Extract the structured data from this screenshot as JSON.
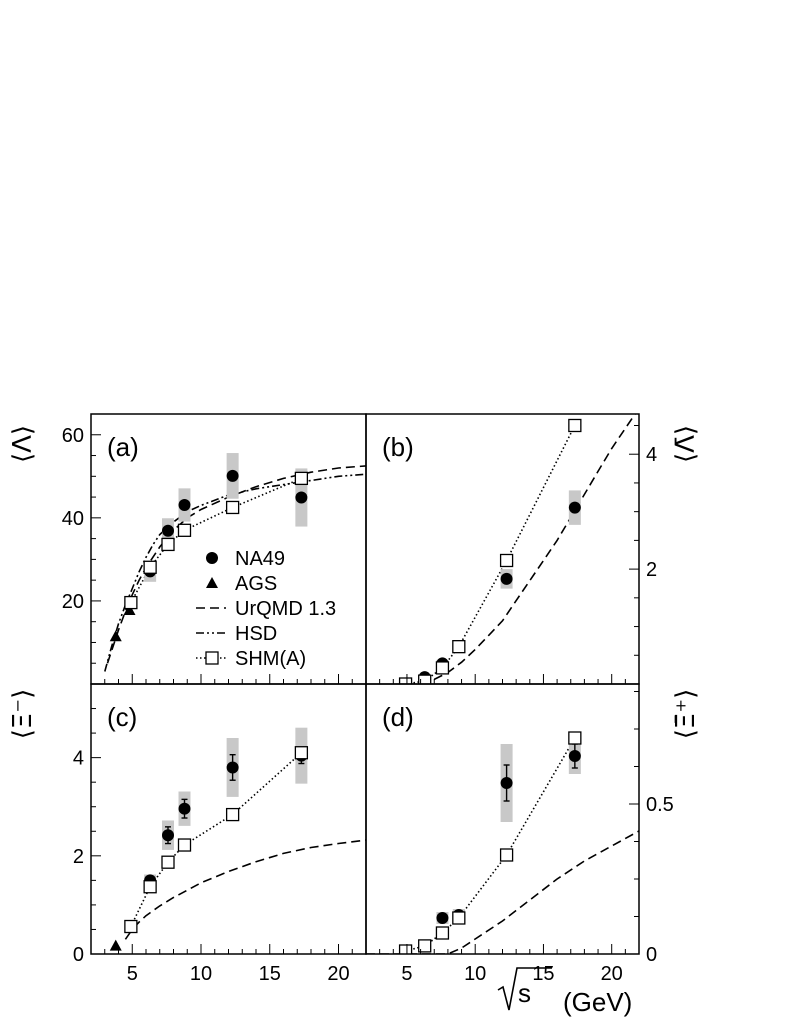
{
  "chart_data": [
    {
      "panel": "(a)",
      "type": "scatter",
      "ylabel": "⟨Λ⟩",
      "xlim": [
        2,
        22
      ],
      "ylim": [
        0,
        65
      ],
      "yticks": [
        20,
        40,
        60
      ],
      "series": [
        {
          "name": "NA49",
          "marker": "filled-circle",
          "points": [
            {
              "x": 6.3,
              "y": 27.1,
              "sys": 2.5
            },
            {
              "x": 7.6,
              "y": 36.9,
              "sys": 3.0
            },
            {
              "x": 8.8,
              "y": 43.1,
              "sys": 4.0
            },
            {
              "x": 12.3,
              "y": 50.1,
              "sys": 5.5
            },
            {
              "x": 17.3,
              "y": 44.9,
              "sys": 7.0
            }
          ]
        },
        {
          "name": "AGS",
          "marker": "filled-triangle",
          "points": [
            {
              "x": 3.8,
              "y": 11.5
            },
            {
              "x": 4.8,
              "y": 17.8
            },
            {
              "x": 4.9,
              "y": 19.5
            }
          ]
        },
        {
          "name": "UrQMD 1.3",
          "line": "dashed",
          "points": [
            [
              3.2,
              5
            ],
            [
              3.6,
              9
            ],
            [
              4.0,
              13
            ],
            [
              4.5,
              17.5
            ],
            [
              5,
              21.5
            ],
            [
              5.5,
              25
            ],
            [
              6,
              28
            ],
            [
              7,
              33
            ],
            [
              8,
              37
            ],
            [
              9,
              40
            ],
            [
              10,
              42
            ],
            [
              12,
              45
            ],
            [
              14,
              47.5
            ],
            [
              16,
              49.5
            ],
            [
              18,
              51
            ],
            [
              20,
              52
            ],
            [
              22,
              52.5
            ]
          ]
        },
        {
          "name": "HSD",
          "line": "dash-dot",
          "points": [
            [
              3.0,
              3
            ],
            [
              3.5,
              9
            ],
            [
              4,
              14.5
            ],
            [
              4.5,
              19
            ],
            [
              5,
              23
            ],
            [
              5.5,
              27
            ],
            [
              6,
              30.5
            ],
            [
              6.5,
              33.5
            ],
            [
              7,
              36
            ],
            [
              8,
              39
            ],
            [
              9,
              41.5
            ],
            [
              10,
              43
            ],
            [
              12,
              45.5
            ],
            [
              14,
              47
            ],
            [
              16,
              48
            ],
            [
              18,
              49
            ],
            [
              20,
              50
            ],
            [
              22,
              50.5
            ]
          ]
        },
        {
          "name": "SHM(A)",
          "marker": "open-square",
          "line": "dotted",
          "points": [
            [
              4.9,
              19.6
            ],
            [
              6.3,
              28.1
            ],
            [
              7.6,
              33.6
            ],
            [
              8.8,
              37.0
            ],
            [
              12.3,
              42.5
            ],
            [
              17.3,
              49.5
            ]
          ]
        }
      ]
    },
    {
      "panel": "(b)",
      "type": "scatter",
      "ylabel": "⟨Λ̄⟩",
      "xlim": [
        2,
        22
      ],
      "ylim": [
        0,
        4.7
      ],
      "yticks": [
        2,
        4
      ],
      "series": [
        {
          "name": "NA49",
          "marker": "filled-circle",
          "points": [
            {
              "x": 6.3,
              "y": 0.12,
              "sys": 0.03
            },
            {
              "x": 7.6,
              "y": 0.36,
              "sys": 0.06
            },
            {
              "x": 8.8,
              "y": 0.66,
              "sys": 0.09
            },
            {
              "x": 12.3,
              "y": 1.83,
              "sys": 0.17
            },
            {
              "x": 17.3,
              "y": 3.07,
              "sys": 0.3
            }
          ]
        },
        {
          "name": "UrQMD 1.3",
          "line": "dashed",
          "points": [
            [
              6,
              0.02
            ],
            [
              7,
              0.08
            ],
            [
              8,
              0.2
            ],
            [
              9,
              0.38
            ],
            [
              10,
              0.6
            ],
            [
              11,
              0.85
            ],
            [
              12,
              1.1
            ],
            [
              13,
              1.45
            ],
            [
              14,
              1.8
            ],
            [
              15,
              2.15
            ],
            [
              16,
              2.5
            ],
            [
              17,
              2.9
            ],
            [
              18,
              3.3
            ],
            [
              19,
              3.7
            ],
            [
              20,
              4.1
            ],
            [
              21,
              4.45
            ],
            [
              22,
              4.8
            ]
          ]
        },
        {
          "name": "SHM(A)",
          "marker": "open-square",
          "line": "dotted",
          "points": [
            [
              4.9,
              0.0
            ],
            [
              6.3,
              0.05
            ],
            [
              7.6,
              0.28
            ],
            [
              8.8,
              0.65
            ],
            [
              12.3,
              2.15
            ],
            [
              17.3,
              4.5
            ]
          ]
        }
      ]
    },
    {
      "panel": "(c)",
      "type": "scatter",
      "ylabel": "⟨Ξ⁻⟩",
      "xlim": [
        2,
        22
      ],
      "ylim": [
        0,
        5.5
      ],
      "yticks": [
        0,
        2,
        4
      ],
      "series": [
        {
          "name": "NA49",
          "marker": "filled-circle",
          "points": [
            {
              "x": 6.3,
              "y": 1.5,
              "sys": 0.12,
              "stat": 0.05
            },
            {
              "x": 7.6,
              "y": 2.42,
              "sys": 0.3,
              "stat": 0.17
            },
            {
              "x": 8.8,
              "y": 2.96,
              "sys": 0.35,
              "stat": 0.19
            },
            {
              "x": 12.3,
              "y": 3.8,
              "sys": 0.6,
              "stat": 0.26
            },
            {
              "x": 17.3,
              "y": 4.04,
              "sys": 0.57,
              "stat": 0.16
            }
          ]
        },
        {
          "name": "AGS",
          "marker": "filled-triangle",
          "points": [
            {
              "x": 3.8,
              "y": 0.17
            }
          ]
        },
        {
          "name": "UrQMD 1.3",
          "line": "dashed",
          "points": [
            [
              4.5,
              0.3
            ],
            [
              5,
              0.5
            ],
            [
              5.5,
              0.65
            ],
            [
              6,
              0.78
            ],
            [
              7,
              0.98
            ],
            [
              8,
              1.15
            ],
            [
              9,
              1.3
            ],
            [
              10,
              1.45
            ],
            [
              12,
              1.68
            ],
            [
              14,
              1.88
            ],
            [
              16,
              2.05
            ],
            [
              18,
              2.17
            ],
            [
              20,
              2.25
            ],
            [
              22,
              2.32
            ]
          ]
        },
        {
          "name": "SHM(A)",
          "marker": "open-square",
          "line": "dotted",
          "points": [
            [
              4.9,
              0.56
            ],
            [
              6.3,
              1.37
            ],
            [
              7.6,
              1.87
            ],
            [
              8.8,
              2.22
            ],
            [
              12.3,
              2.84
            ],
            [
              17.3,
              4.1
            ]
          ]
        }
      ]
    },
    {
      "panel": "(d)",
      "type": "scatter",
      "ylabel": "⟨Ξ̄⁺⟩",
      "xlim": [
        2,
        22
      ],
      "ylim": [
        0,
        0.9
      ],
      "yticks": [
        0,
        0.5
      ],
      "series": [
        {
          "name": "NA49",
          "marker": "filled-circle",
          "points": [
            {
              "x": 7.6,
              "y": 0.12,
              "sys": 0.02
            },
            {
              "x": 8.8,
              "y": 0.13,
              "sys": 0.02
            },
            {
              "x": 12.3,
              "y": 0.57,
              "sys": 0.13,
              "stat": 0.06
            },
            {
              "x": 17.3,
              "y": 0.66,
              "sys": 0.06,
              "stat": 0.04
            }
          ]
        },
        {
          "name": "UrQMD 1.3",
          "line": "dashed",
          "points": [
            [
              2,
              0.0
            ],
            [
              4,
              0.0
            ],
            [
              6,
              0.0
            ],
            [
              8,
              0.0
            ],
            [
              9,
              0.02
            ],
            [
              10,
              0.05
            ],
            [
              12,
              0.11
            ],
            [
              14,
              0.18
            ],
            [
              16,
              0.25
            ],
            [
              18,
              0.31
            ],
            [
              20,
              0.36
            ],
            [
              22,
              0.41
            ]
          ]
        },
        {
          "name": "SHM(A)",
          "marker": "open-square",
          "line": "dotted",
          "points": [
            [
              4.9,
              0.01
            ],
            [
              6.3,
              0.027
            ],
            [
              7.6,
              0.07
            ],
            [
              8.8,
              0.12
            ],
            [
              12.3,
              0.33
            ],
            [
              17.3,
              0.72
            ]
          ]
        }
      ]
    }
  ],
  "xaxis": {
    "ticks": [
      5,
      10,
      15,
      20
    ],
    "title": "(GeV)"
  },
  "legend": {
    "entries": [
      {
        "label": "NA49",
        "symbol": "filled-circle"
      },
      {
        "label": "AGS",
        "symbol": "filled-triangle"
      },
      {
        "label": "UrQMD 1.3",
        "symbol": "dashed"
      },
      {
        "label": "HSD",
        "symbol": "dash-dot"
      },
      {
        "label": "SHM(A)",
        "symbol": "open-square-dotted"
      }
    ]
  }
}
